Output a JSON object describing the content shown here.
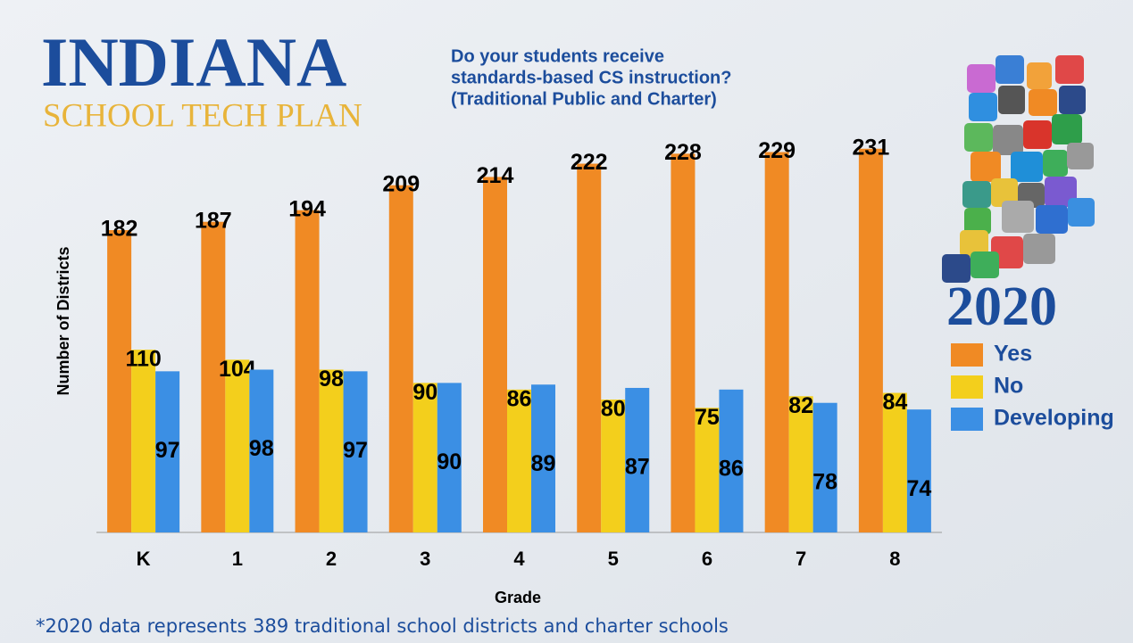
{
  "header": {
    "brand": "INDIANA",
    "subbrand": "SCHOOL TECH PLAN"
  },
  "chart_data": {
    "type": "bar",
    "title": [
      "Do your students receive",
      "standards-based CS instruction?",
      "(Traditional Public and Charter)"
    ],
    "x_label": "Grade",
    "y_label": "Number of Districts",
    "legend_title": "2020",
    "categories": [
      "K",
      "1",
      "2",
      "3",
      "4",
      "5",
      "6",
      "7",
      "8"
    ],
    "series": [
      {
        "name": "Yes",
        "color": "#f08a24",
        "values": [
          182,
          187,
          194,
          209,
          214,
          222,
          228,
          229,
          231
        ]
      },
      {
        "name": "No",
        "color": "#f3cf1c",
        "values": [
          110,
          104,
          98,
          90,
          86,
          80,
          75,
          82,
          84
        ]
      },
      {
        "name": "Developing",
        "color": "#3b8fe4",
        "values": [
          97,
          98,
          97,
          90,
          89,
          87,
          86,
          78,
          74
        ]
      }
    ],
    "ylim": [
      0,
      240
    ]
  },
  "footnote": "*2020 data represents 389 traditional school districts and charter schools"
}
